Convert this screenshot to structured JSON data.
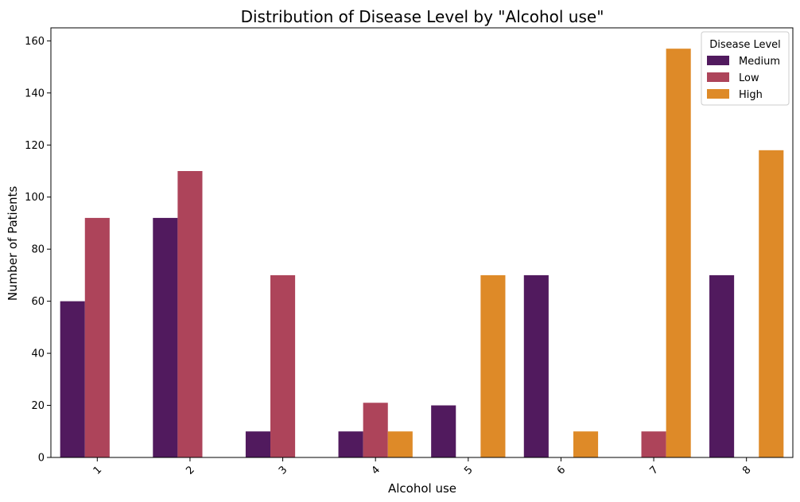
{
  "chart_data": {
    "type": "bar",
    "title": "Distribution of Disease Level by \"Alcohol use\"",
    "xlabel": "Alcohol use",
    "ylabel": "Number of Patients",
    "categories": [
      "1",
      "2",
      "3",
      "4",
      "5",
      "6",
      "7",
      "8"
    ],
    "ylim": [
      0,
      165
    ],
    "yticks": [
      0,
      20,
      40,
      60,
      80,
      100,
      120,
      140,
      160
    ],
    "grid": false,
    "legend": {
      "title": "Disease Level",
      "placement": "top-right"
    },
    "series": [
      {
        "name": "Medium",
        "color": "#511a5e",
        "values": [
          60,
          92,
          10,
          10,
          20,
          70,
          0,
          70
        ]
      },
      {
        "name": "Low",
        "color": "#ad445a",
        "values": [
          92,
          110,
          70,
          21,
          0,
          0,
          10,
          0
        ]
      },
      {
        "name": "High",
        "color": "#de8a28",
        "values": [
          0,
          0,
          0,
          10,
          70,
          10,
          157,
          118
        ]
      }
    ]
  }
}
